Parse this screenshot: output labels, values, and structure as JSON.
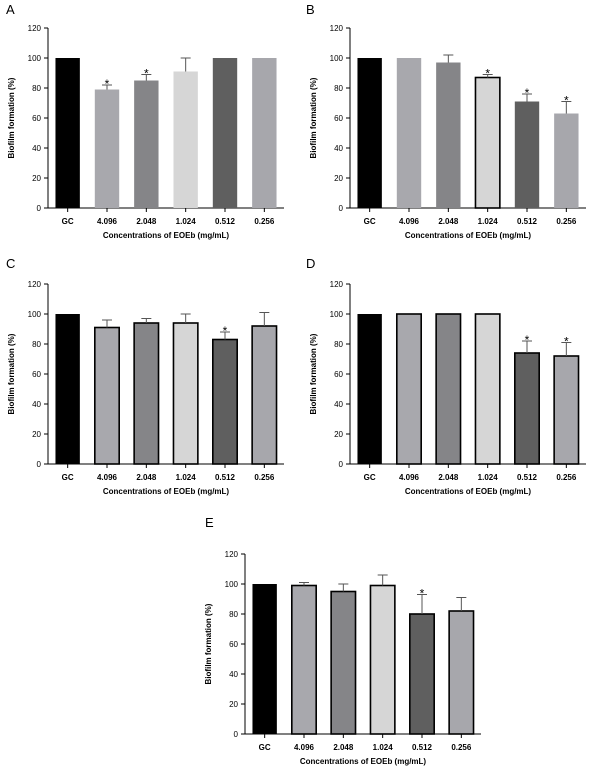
{
  "chart_data": [
    {
      "panel": "A",
      "type": "bar",
      "xlabel": "Concentrations of EOEb (mg/mL)",
      "ylabel": "Biofilm formation (%)",
      "ylim": [
        0,
        120
      ],
      "yticks": [
        0,
        20,
        40,
        60,
        80,
        100,
        120
      ],
      "categories": [
        "GC",
        "4.096",
        "2.048",
        "1.024",
        "0.512",
        "0.256"
      ],
      "values": [
        100,
        79,
        85,
        91,
        100,
        100
      ],
      "errors": [
        0,
        3,
        4,
        9,
        0,
        0
      ],
      "significant": [
        "",
        "*",
        "*",
        "",
        "",
        ""
      ],
      "colors": [
        "#000000",
        "#a8a8ad",
        "#858588",
        "#d6d6d6",
        "#5f5f5f",
        "#a7a7ac"
      ],
      "bordered": [
        false,
        false,
        false,
        false,
        false,
        false
      ],
      "legend": "none",
      "grid": false
    },
    {
      "panel": "B",
      "type": "bar",
      "xlabel": "Concentrations of EOEb (mg/mL)",
      "ylabel": "Biofilm formation (%)",
      "ylim": [
        0,
        120
      ],
      "yticks": [
        0,
        20,
        40,
        60,
        80,
        100,
        120
      ],
      "categories": [
        "GC",
        "4.096",
        "2.048",
        "1.024",
        "0.512",
        "0.256"
      ],
      "values": [
        100,
        100,
        97,
        87,
        71,
        63
      ],
      "errors": [
        0,
        0,
        5,
        2,
        5,
        8
      ],
      "significant": [
        "",
        "",
        "",
        "*",
        "*",
        "*"
      ],
      "colors": [
        "#000000",
        "#a8a8ad",
        "#858588",
        "#d6d6d6",
        "#5f5f5f",
        "#a7a7ac"
      ],
      "bordered": [
        false,
        false,
        false,
        true,
        false,
        false
      ],
      "legend": "none",
      "grid": false
    },
    {
      "panel": "C",
      "type": "bar",
      "xlabel": "Concentrations of EOEb (mg/mL)",
      "ylabel": "Biofilm formation (%)",
      "ylim": [
        0,
        120
      ],
      "yticks": [
        0,
        20,
        40,
        60,
        80,
        100,
        120
      ],
      "categories": [
        "GC",
        "4.096",
        "2.048",
        "1.024",
        "0.512",
        "0.256"
      ],
      "values": [
        100,
        91,
        94,
        94,
        83,
        92
      ],
      "errors": [
        0,
        5,
        3,
        6,
        5,
        9
      ],
      "significant": [
        "",
        "",
        "",
        "",
        "*",
        ""
      ],
      "colors": [
        "#000000",
        "#a8a8ad",
        "#858588",
        "#d6d6d6",
        "#5f5f5f",
        "#a7a7ac"
      ],
      "bordered": [
        false,
        true,
        true,
        true,
        true,
        true
      ],
      "legend": "none",
      "grid": false
    },
    {
      "panel": "D",
      "type": "bar",
      "xlabel": "Concentrations of EOEb (mg/mL)",
      "ylabel": "Biofilm formation (%)",
      "ylim": [
        0,
        120
      ],
      "yticks": [
        0,
        20,
        40,
        60,
        80,
        100,
        120
      ],
      "categories": [
        "GC",
        "4.096",
        "2.048",
        "1.024",
        "0.512",
        "0.256"
      ],
      "values": [
        100,
        100,
        100,
        100,
        74,
        72
      ],
      "errors": [
        0,
        0,
        0,
        0,
        8,
        9
      ],
      "significant": [
        "",
        "",
        "",
        "",
        "*",
        "*"
      ],
      "colors": [
        "#000000",
        "#a8a8ad",
        "#858588",
        "#d6d6d6",
        "#5f5f5f",
        "#a7a7ac"
      ],
      "bordered": [
        false,
        true,
        true,
        true,
        true,
        true
      ],
      "legend": "none",
      "grid": false
    },
    {
      "panel": "E",
      "type": "bar",
      "xlabel": "Concentrations of EOEb (mg/mL)",
      "ylabel": "Biofilm formation (%)",
      "ylim": [
        0,
        120
      ],
      "yticks": [
        0,
        20,
        40,
        60,
        80,
        100,
        120
      ],
      "categories": [
        "GC",
        "4.096",
        "2.048",
        "1.024",
        "0.512",
        "0.256"
      ],
      "values": [
        100,
        99,
        95,
        99,
        80,
        82
      ],
      "errors": [
        0,
        2,
        5,
        7,
        13,
        9
      ],
      "significant": [
        "",
        "",
        "",
        "",
        "*",
        ""
      ],
      "colors": [
        "#000000",
        "#a8a8ad",
        "#858588",
        "#d6d6d6",
        "#5f5f5f",
        "#a7a7ac"
      ],
      "bordered": [
        false,
        true,
        true,
        true,
        true,
        true
      ],
      "legend": "none",
      "grid": false
    }
  ]
}
